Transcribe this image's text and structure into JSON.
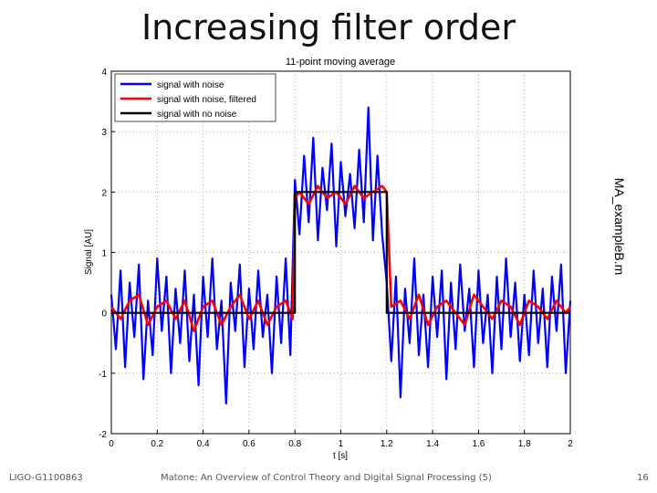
{
  "slide": {
    "title": "Increasing filter order",
    "footer_left": "LIGO-G1100863",
    "footer_center": "Matone: An Overview of Control Theory and Digital Signal Processing (5)",
    "page_number": "16",
    "side_label": "MA_exampleB.m"
  },
  "chart_data": {
    "type": "line",
    "title": "11-point moving average",
    "xlabel": "t [s]",
    "ylabel": "Signal [AU]",
    "xlim": [
      0,
      2
    ],
    "ylim": [
      -2,
      4
    ],
    "xticks": [
      "0",
      "0.2",
      "0.4",
      "0.6",
      "0.8",
      "1",
      "1.2",
      "1.4",
      "1.6",
      "1.8",
      "2"
    ],
    "yticks": [
      "-2",
      "-1",
      "0",
      "1",
      "2",
      "3",
      "4"
    ],
    "grid": true,
    "legend_position": "top-left",
    "series": [
      {
        "name": "signal with noise",
        "color": "#0000ff",
        "x": [
          0.0,
          0.02,
          0.04,
          0.06,
          0.08,
          0.1,
          0.12,
          0.14,
          0.16,
          0.18,
          0.2,
          0.22,
          0.24,
          0.26,
          0.28,
          0.3,
          0.32,
          0.34,
          0.36,
          0.38,
          0.4,
          0.42,
          0.44,
          0.46,
          0.48,
          0.5,
          0.52,
          0.54,
          0.56,
          0.58,
          0.6,
          0.62,
          0.64,
          0.66,
          0.68,
          0.7,
          0.72,
          0.74,
          0.76,
          0.78,
          0.8,
          0.82,
          0.84,
          0.86,
          0.88,
          0.9,
          0.92,
          0.94,
          0.96,
          0.98,
          1.0,
          1.02,
          1.04,
          1.06,
          1.08,
          1.1,
          1.12,
          1.14,
          1.16,
          1.18,
          1.2,
          1.22,
          1.24,
          1.26,
          1.28,
          1.3,
          1.32,
          1.34,
          1.36,
          1.38,
          1.4,
          1.42,
          1.44,
          1.46,
          1.48,
          1.5,
          1.52,
          1.54,
          1.56,
          1.58,
          1.6,
          1.62,
          1.64,
          1.66,
          1.68,
          1.7,
          1.72,
          1.74,
          1.76,
          1.78,
          1.8,
          1.82,
          1.84,
          1.86,
          1.88,
          1.9,
          1.92,
          1.94,
          1.96,
          1.98,
          2.0
        ],
        "y": [
          0.3,
          -0.6,
          0.7,
          -0.9,
          0.5,
          -0.4,
          0.8,
          -1.1,
          0.2,
          -0.7,
          0.9,
          -0.3,
          0.6,
          -1.0,
          0.4,
          -0.5,
          0.7,
          -0.8,
          0.3,
          -1.2,
          0.6,
          -0.4,
          0.9,
          -0.6,
          0.2,
          -1.5,
          0.5,
          -0.3,
          0.8,
          -0.9,
          0.4,
          -0.6,
          0.7,
          -0.4,
          0.3,
          -1.0,
          0.6,
          -0.5,
          0.9,
          -0.7,
          2.2,
          1.3,
          2.6,
          1.5,
          2.9,
          1.2,
          2.4,
          1.7,
          2.8,
          1.1,
          2.5,
          1.6,
          2.3,
          1.4,
          2.7,
          1.5,
          3.4,
          1.2,
          2.6,
          1.3,
          0.5,
          -0.8,
          0.6,
          -1.4,
          0.4,
          -0.5,
          0.9,
          -0.7,
          0.3,
          -0.9,
          0.6,
          -0.4,
          0.7,
          -1.1,
          0.5,
          -0.6,
          0.8,
          -0.3,
          0.4,
          -0.9,
          0.7,
          -0.5,
          0.3,
          -1.0,
          0.6,
          -0.6,
          0.9,
          -0.4,
          0.5,
          -0.8,
          0.3,
          -0.7,
          0.7,
          -0.5,
          0.4,
          -0.9,
          0.6,
          -0.3,
          0.8,
          -1.0,
          0.2
        ]
      },
      {
        "name": "signal with noise, filtered",
        "color": "#ff0000",
        "x": [
          0.0,
          0.04,
          0.08,
          0.12,
          0.16,
          0.2,
          0.24,
          0.28,
          0.32,
          0.36,
          0.4,
          0.44,
          0.48,
          0.52,
          0.56,
          0.6,
          0.64,
          0.68,
          0.72,
          0.76,
          0.79,
          0.8,
          0.82,
          0.86,
          0.9,
          0.94,
          0.98,
          1.02,
          1.06,
          1.1,
          1.14,
          1.18,
          1.2,
          1.22,
          1.26,
          1.3,
          1.34,
          1.38,
          1.42,
          1.46,
          1.5,
          1.54,
          1.58,
          1.62,
          1.66,
          1.7,
          1.74,
          1.78,
          1.82,
          1.86,
          1.9,
          1.94,
          1.98,
          2.0
        ],
        "y": [
          0.1,
          -0.1,
          0.2,
          0.3,
          -0.2,
          0.1,
          0.2,
          -0.1,
          0.2,
          -0.3,
          0.1,
          0.2,
          -0.2,
          0.1,
          0.3,
          -0.1,
          0.2,
          -0.2,
          0.1,
          0.2,
          -0.1,
          1.9,
          2.0,
          1.8,
          2.1,
          1.9,
          2.0,
          1.8,
          2.1,
          1.9,
          2.0,
          2.1,
          2.0,
          0.1,
          0.2,
          -0.1,
          0.3,
          -0.2,
          0.1,
          0.2,
          0.0,
          -0.2,
          0.3,
          0.1,
          -0.1,
          0.2,
          0.1,
          -0.2,
          0.2,
          0.1,
          -0.1,
          0.2,
          0.0,
          0.1
        ]
      },
      {
        "name": "signal with no noise",
        "color": "#000000",
        "x": [
          0,
          0.8,
          0.8,
          1.2,
          1.2,
          2
        ],
        "y": [
          0,
          0,
          2,
          2,
          0,
          0
        ]
      }
    ]
  }
}
